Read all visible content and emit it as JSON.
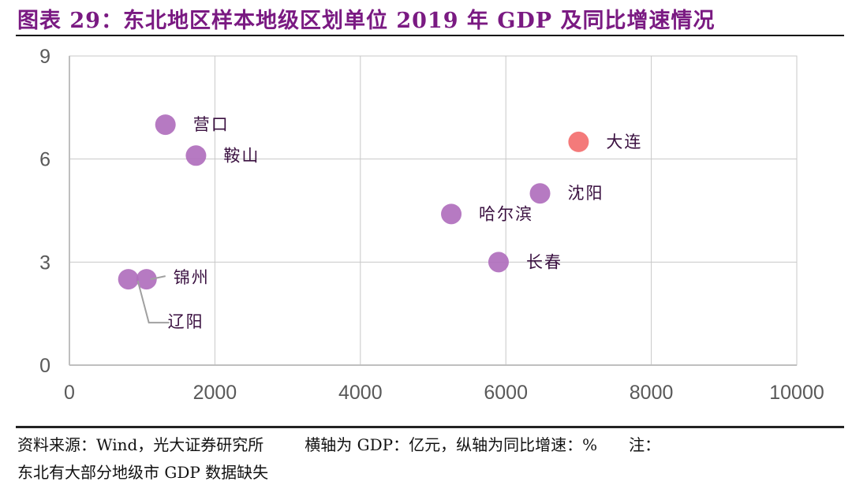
{
  "title": "图表 29：东北地区样本地级区划单位 2019 年 GDP 及同比增速情况",
  "footer": {
    "source": "资料来源：Wind，光大证券研究所",
    "axis_note": "横轴为 GDP：亿元，纵轴为同比增速：%",
    "note_line1": "注：",
    "note_line2": "东北有大部分地级市 GDP 数据缺失"
  },
  "colors": {
    "title": "#7a1a82",
    "point": "#b06fbd",
    "highlight": "#f47a7a",
    "label": "#3a1040",
    "grid": "#c8c8c8",
    "tick": "#595959"
  },
  "chart_data": {
    "type": "scatter",
    "title": "东北地区样本地级区划单位 2019 年 GDP 及同比增速情况",
    "xlabel": "GDP（亿元）",
    "ylabel": "同比增速（%）",
    "xlim": [
      0,
      10000
    ],
    "ylim": [
      0,
      9
    ],
    "xticks": [
      0,
      2000,
      4000,
      6000,
      8000,
      10000
    ],
    "yticks": [
      0,
      3,
      6,
      9
    ],
    "grid": true,
    "legend": "none",
    "points": [
      {
        "name": "营口",
        "x": 1320,
        "y": 7.0,
        "highlight": false
      },
      {
        "name": "鞍山",
        "x": 1740,
        "y": 6.1,
        "highlight": false
      },
      {
        "name": "锦州",
        "x": 1060,
        "y": 2.5,
        "highlight": false
      },
      {
        "name": "辽阳",
        "x": 810,
        "y": 2.5,
        "highlight": false
      },
      {
        "name": "哈尔滨",
        "x": 5250,
        "y": 4.4,
        "highlight": false
      },
      {
        "name": "长春",
        "x": 5900,
        "y": 3.0,
        "highlight": false
      },
      {
        "name": "沈阳",
        "x": 6470,
        "y": 5.0,
        "highlight": false
      },
      {
        "name": "大连",
        "x": 7000,
        "y": 6.5,
        "highlight": true
      }
    ]
  }
}
